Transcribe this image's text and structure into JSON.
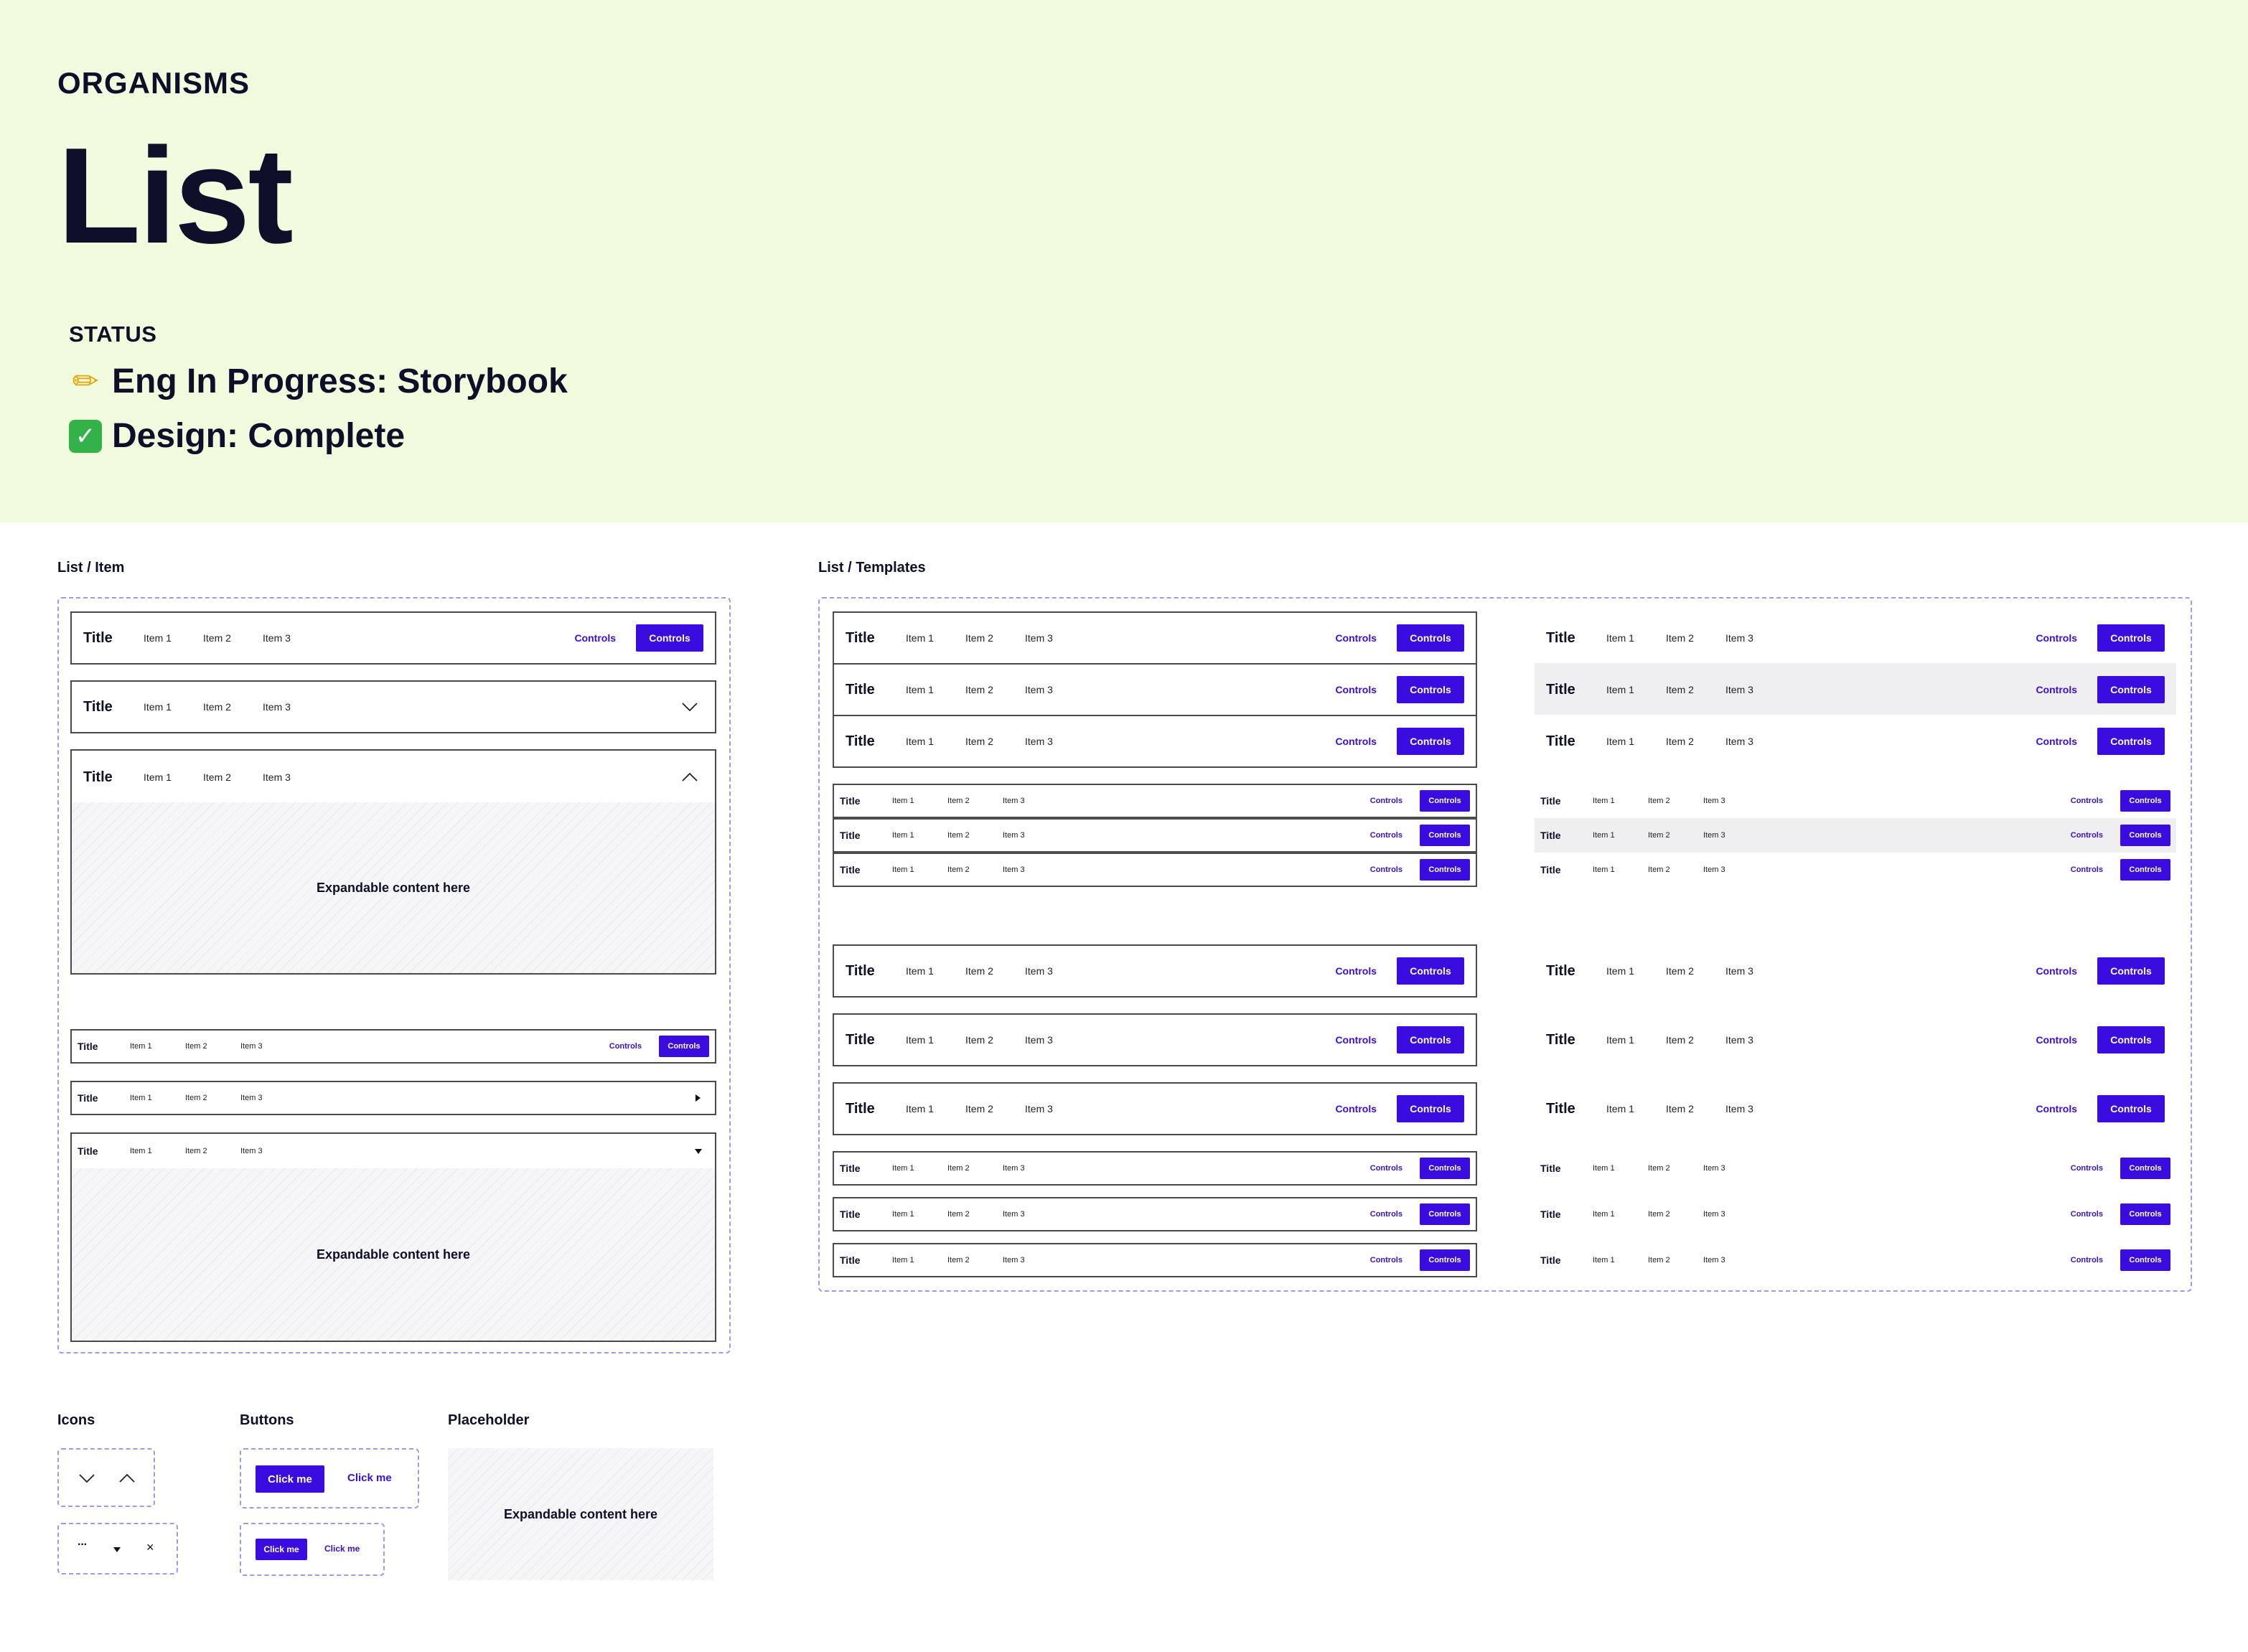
{
  "header": {
    "category": "ORGANISMS",
    "title": "List",
    "status_label": "STATUS",
    "status_items": [
      {
        "icon": "pencil-icon",
        "text": "Eng In Progress: Storybook"
      },
      {
        "icon": "checkmark-icon",
        "text": "Design: Complete"
      }
    ]
  },
  "list_item": {
    "section_label": "List / Item",
    "title": "Title",
    "items": [
      "Item 1",
      "Item 2",
      "Item 3"
    ],
    "link_label": "Controls",
    "button_label": "Controls",
    "expand_text": "Expandable content here"
  },
  "list_templates": {
    "section_label": "List / Templates",
    "title": "Title",
    "items": [
      "Item 1",
      "Item 2",
      "Item 3"
    ],
    "link_label": "Controls",
    "button_label": "Controls"
  },
  "icons": {
    "section_label": "Icons",
    "names": [
      "chevron-down-icon",
      "chevron-up-icon",
      "more-icon",
      "caret-down-icon",
      "close-icon"
    ]
  },
  "buttons": {
    "section_label": "Buttons",
    "primary_label": "Click me",
    "secondary_label": "Click me"
  },
  "placeholder": {
    "section_label": "Placeholder",
    "text": "Expandable content here"
  },
  "colors": {
    "hero_bg": "#f1fcdf",
    "accent": "#3a0ce0",
    "dash_border": "#a197ec",
    "text": "#0d1028"
  }
}
